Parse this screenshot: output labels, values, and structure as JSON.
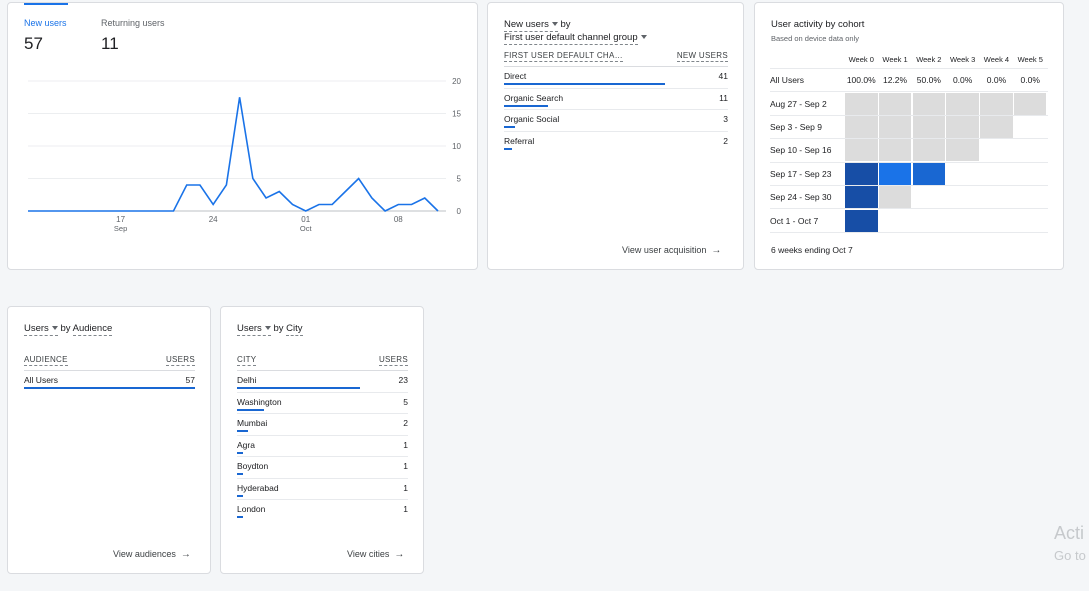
{
  "users_card": {
    "tabs": [
      {
        "label": "New users",
        "value": "57"
      },
      {
        "label": "Returning users",
        "value": "11"
      }
    ]
  },
  "chart_data": {
    "type": "line",
    "series": [
      {
        "values": [
          0,
          0,
          0,
          0,
          0,
          0,
          0,
          0,
          0,
          0,
          0,
          0,
          4,
          4,
          1,
          4,
          17.5,
          5,
          2,
          3,
          1,
          0,
          1,
          1,
          3,
          5,
          2,
          0,
          1,
          1,
          2,
          0
        ]
      }
    ],
    "x_start": "Sep 10",
    "x_ticks": [
      {
        "day": "17",
        "month": "Sep"
      },
      {
        "day": "24",
        "month": ""
      },
      {
        "day": "01",
        "month": "Oct"
      },
      {
        "day": "08",
        "month": ""
      }
    ],
    "y_ticks": [
      "20",
      "15",
      "10",
      "5",
      "0"
    ],
    "ylim": [
      0,
      20
    ],
    "color": "#1a73e8",
    "grid": true
  },
  "acquisition_card": {
    "title_metric": "New users",
    "title_by": "by",
    "dimension": "First user default channel group",
    "col_dim": "FIRST USER DEFAULT CHA…",
    "col_metric": "NEW USERS",
    "rows": [
      {
        "name": "Direct",
        "value": "41",
        "fraction": 1.0
      },
      {
        "name": "Organic Search",
        "value": "11",
        "fraction": 0.27
      },
      {
        "name": "Organic Social",
        "value": "3",
        "fraction": 0.07
      },
      {
        "name": "Referral",
        "value": "2",
        "fraction": 0.05
      }
    ],
    "link": "View user acquisition"
  },
  "cohort_card": {
    "title": "User activity by cohort",
    "subtitle": "Based on device data only",
    "weeks": [
      "Week 0",
      "Week 1",
      "Week 2",
      "Week 3",
      "Week 4",
      "Week 5"
    ],
    "all_users_label": "All Users",
    "all_users_values": [
      "100.0%",
      "12.2%",
      "50.0%",
      "0.0%",
      "0.0%",
      "0.0%"
    ],
    "rows": [
      {
        "label": "Aug 27 - Sep 2",
        "cells": [
          "#dcdcdc",
          "#dcdcdc",
          "#dcdcdc",
          "#dcdcdc",
          "#dcdcdc",
          "#dcdcdc"
        ]
      },
      {
        "label": "Sep 3 - Sep 9",
        "cells": [
          "#dcdcdc",
          "#dcdcdc",
          "#dcdcdc",
          "#dcdcdc",
          "#dcdcdc"
        ]
      },
      {
        "label": "Sep 10 - Sep 16",
        "cells": [
          "#dcdcdc",
          "#dcdcdc",
          "#dcdcdc",
          "#dcdcdc"
        ]
      },
      {
        "label": "Sep 17 - Sep 23",
        "cells": [
          "#174ea6",
          "#1a73e8",
          "#1967d2"
        ]
      },
      {
        "label": "Sep 24 - Sep 30",
        "cells": [
          "#174ea6",
          "#dcdcdc"
        ]
      },
      {
        "label": "Oct 1 - Oct 7",
        "cells": [
          "#174ea6"
        ]
      }
    ],
    "footer": "6 weeks ending Oct 7"
  },
  "audience_card": {
    "title_metric": "Users",
    "title_by": "by",
    "dimension": "Audience",
    "col_dim": "AUDIENCE",
    "col_metric": "USERS",
    "rows": [
      {
        "name": "All Users",
        "value": "57",
        "fraction": 1.0
      }
    ],
    "link": "View audiences"
  },
  "city_card": {
    "title_metric": "Users",
    "title_by": "by",
    "dimension": "City",
    "col_dim": "CITY",
    "col_metric": "USERS",
    "rows": [
      {
        "name": "Delhi",
        "value": "23",
        "fraction": 1.0
      },
      {
        "name": "Washington",
        "value": "5",
        "fraction": 0.22
      },
      {
        "name": "Mumbai",
        "value": "2",
        "fraction": 0.09
      },
      {
        "name": "Agra",
        "value": "1",
        "fraction": 0.045
      },
      {
        "name": "Boydton",
        "value": "1",
        "fraction": 0.045
      },
      {
        "name": "Hyderabad",
        "value": "1",
        "fraction": 0.045
      },
      {
        "name": "London",
        "value": "1",
        "fraction": 0.045
      }
    ],
    "link": "View cities"
  },
  "watermark": {
    "line1": "Acti",
    "line2": "Go to"
  },
  "colors": {
    "accent": "#1a73e8",
    "empty_cell": "#dcdcdc"
  },
  "icons": {
    "arrow": "arrow-right-icon",
    "caret": "caret-down-icon"
  }
}
